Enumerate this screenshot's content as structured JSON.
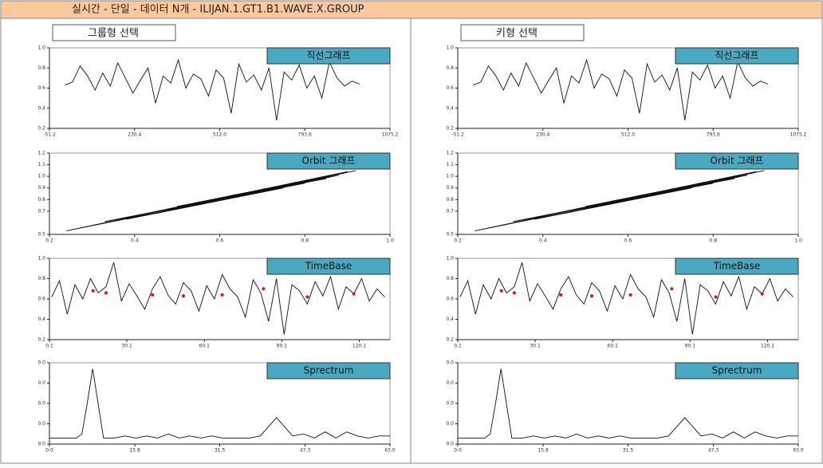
{
  "header": {
    "title": "실시간 - 단일 - 데이터 N개 - ILIJAN.1.GT1.B1.WAVE.X.GROUP"
  },
  "panels": [
    {
      "selector": "그룹형 선택"
    },
    {
      "selector": "키형 선택"
    }
  ],
  "chart_data": [
    {
      "type": "line",
      "title": "직선그래프",
      "color": "#111111",
      "x": [
        0,
        25,
        50,
        75,
        100,
        125,
        150,
        175,
        200,
        225,
        250,
        275,
        300,
        325,
        350,
        375,
        400,
        425,
        450,
        475,
        500,
        525,
        550,
        575,
        600,
        625,
        650,
        675,
        700,
        725,
        750,
        775,
        800,
        825,
        850,
        875,
        900,
        925,
        950,
        975
      ],
      "values": [
        0.63,
        0.66,
        0.82,
        0.72,
        0.58,
        0.75,
        0.62,
        0.85,
        0.7,
        0.55,
        0.68,
        0.8,
        0.45,
        0.72,
        0.65,
        0.88,
        0.6,
        0.74,
        0.69,
        0.52,
        0.78,
        0.7,
        0.35,
        0.84,
        0.66,
        0.73,
        0.58,
        0.8,
        0.28,
        0.76,
        0.68,
        0.83,
        0.6,
        0.72,
        0.5,
        0.86,
        0.7,
        0.62,
        0.67,
        0.64
      ],
      "xlim": [
        -51.2,
        1075.2
      ],
      "xticks": [
        -51.2,
        230.4,
        {
          "value": 512,
          "label": "512.0"
        },
        793.6,
        1075.2
      ],
      "ylim": [
        0.2,
        1
      ],
      "yticks": [
        0.2,
        0.4,
        0.6,
        0.8,
        {
          "value": 1,
          "label": "1.0"
        }
      ]
    },
    {
      "type": "orbit",
      "title": "Orbit 그래프",
      "color": "#111111",
      "x": [
        0.65,
        0.24,
        0.82,
        0.4,
        0.9,
        0.55,
        0.8,
        0.33,
        0.88,
        0.6,
        0.78,
        0.45,
        0.92,
        0.5,
        0.85,
        0.7,
        0.75,
        0.38,
        0.86,
        0.62
      ],
      "values": [
        0.85,
        0.53,
        0.96,
        0.66,
        1.04,
        0.77,
        0.94,
        0.61,
        1.01,
        0.79,
        0.95,
        0.68,
        1.05,
        0.74,
        0.98,
        0.89,
        0.9,
        0.63,
        1.0,
        0.83
      ],
      "xlim": [
        0.2,
        1
      ],
      "xticks": [
        0.2,
        0.4,
        0.6,
        0.8,
        {
          "value": 1,
          "label": "1.0"
        }
      ],
      "ylim": [
        0.5,
        1.2
      ],
      "yticks": [
        0.5,
        0.7,
        0.8,
        0.9,
        {
          "value": 1,
          "label": "1.0"
        },
        1.1,
        1.2
      ]
    },
    {
      "type": "line",
      "title": "TimeBase",
      "color": "#111111",
      "x": [
        1,
        4,
        7,
        10,
        13,
        16,
        19,
        22,
        25,
        28,
        31,
        34,
        37,
        40,
        43,
        46,
        49,
        52,
        55,
        58,
        61,
        64,
        67,
        70,
        73,
        76,
        79,
        82,
        85,
        88,
        91,
        94,
        97,
        100,
        103,
        106,
        109,
        112,
        115,
        118,
        121,
        124,
        127,
        130
      ],
      "values": [
        0.62,
        0.78,
        0.45,
        0.74,
        0.6,
        0.8,
        0.66,
        0.72,
        0.96,
        0.58,
        0.75,
        0.63,
        0.5,
        0.7,
        0.82,
        0.64,
        0.55,
        0.76,
        0.68,
        0.48,
        0.73,
        0.6,
        0.84,
        0.7,
        0.62,
        0.42,
        0.79,
        0.66,
        0.38,
        0.8,
        0.25,
        0.74,
        0.68,
        0.55,
        0.77,
        0.63,
        0.82,
        0.5,
        0.72,
        0.65,
        0.8,
        0.58,
        0.7,
        0.62
      ],
      "markers": {
        "color": "#e01010",
        "x": [
          17,
          22,
          40,
          52,
          67,
          83,
          100,
          118
        ],
        "values": [
          0.68,
          0.66,
          0.64,
          0.63,
          0.64,
          0.7,
          0.62,
          0.65
        ]
      },
      "xlim": [
        0.1,
        132
      ],
      "xticks": [
        0.1,
        30.1,
        60.1,
        90.1,
        120.1
      ],
      "ylim": [
        0.2,
        1
      ],
      "yticks": [
        0.2,
        0.4,
        0.6,
        0.8,
        {
          "value": 1,
          "label": "1.0"
        }
      ]
    },
    {
      "type": "line",
      "title": "Sprectrum",
      "color": "#111111",
      "x": [
        0,
        3,
        5,
        6,
        7,
        8,
        9,
        10,
        12,
        14,
        16,
        18,
        20,
        22,
        24,
        26,
        28,
        30,
        32,
        35,
        37,
        39,
        42,
        45,
        47,
        49,
        51,
        53,
        55,
        57,
        59,
        61,
        63
      ],
      "values": [
        0.003,
        0.003,
        0.003,
        0.005,
        0.02,
        0.037,
        0.02,
        0.003,
        0.003,
        0.004,
        0.003,
        0.004,
        0.003,
        0.005,
        0.003,
        0.004,
        0.003,
        0.004,
        0.003,
        0.003,
        0.003,
        0.004,
        0.013,
        0.004,
        0.005,
        0.003,
        0.006,
        0.003,
        0.006,
        0.004,
        0.003,
        0.004,
        0.004
      ],
      "xlim": [
        0,
        63
      ],
      "xticks": [
        {
          "value": 0,
          "label": "0.0"
        },
        15.8,
        31.5,
        47.3,
        {
          "value": 63,
          "label": "63.0"
        }
      ],
      "ylim": [
        0,
        0.04
      ],
      "yticks": [
        {
          "value": 0,
          "label": "0.0"
        },
        {
          "value": 0.01,
          "label": "0.0"
        },
        {
          "value": 0.02,
          "label": "0.0"
        },
        {
          "value": 0.03,
          "label": "0.0"
        },
        {
          "value": 0.04,
          "label": "0.0"
        }
      ]
    }
  ]
}
